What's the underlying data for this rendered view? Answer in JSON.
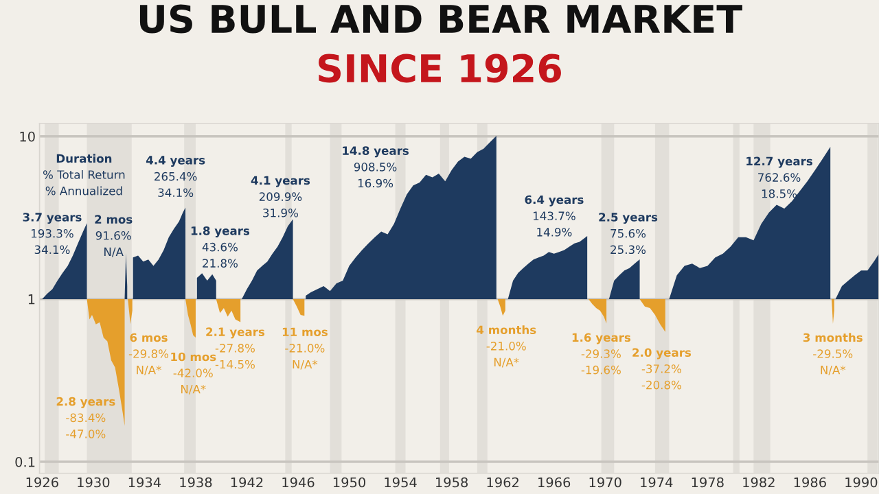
{
  "chart_data": {
    "type": "area",
    "title": "US BULL AND BEAR MARKET",
    "subtitle": "SINCE 1926",
    "log": "y",
    "ylim": [
      0.085,
      12
    ],
    "yticks": [
      0.1,
      1,
      10
    ],
    "xlim": [
      1925.8,
      1991.4
    ],
    "xticks": [
      1926,
      1930,
      1934,
      1938,
      1942,
      1946,
      1950,
      1954,
      1958,
      1962,
      1966,
      1970,
      1974,
      1978,
      1982,
      1986,
      1990
    ],
    "grid": "y",
    "series": [
      {
        "color": "#1e3a5f",
        "x": [
          1926.0,
          1926.4,
          1926.8,
          1927.2,
          1927.6,
          1928.0,
          1928.4,
          1928.8,
          1929.2,
          1929.5
        ],
        "values": [
          1.0,
          1.08,
          1.15,
          1.3,
          1.45,
          1.6,
          1.85,
          2.2,
          2.6,
          2.93
        ]
      },
      {
        "color": "#e59f2c",
        "x": [
          1929.5,
          1929.7,
          1929.9,
          1930.2,
          1930.5,
          1930.8,
          1931.1,
          1931.4,
          1931.7,
          1932.0,
          1932.3,
          1932.45,
          1932.45
        ],
        "values": [
          1.0,
          0.75,
          0.8,
          0.7,
          0.72,
          0.58,
          0.55,
          0.42,
          0.38,
          0.28,
          0.2,
          0.166,
          1.0
        ]
      },
      {
        "color": "#1e3a5f",
        "x": [
          1932.45,
          1932.55,
          1932.65
        ],
        "values": [
          1.0,
          1.916,
          1.2
        ]
      },
      {
        "color": "#e59f2c",
        "x": [
          1932.7,
          1932.9,
          1933.05,
          1933.05
        ],
        "values": [
          1.0,
          0.702,
          0.85,
          1.0
        ]
      },
      {
        "color": "#1e3a5f",
        "x": [
          1933.1,
          1933.5,
          1933.9,
          1934.3,
          1934.7,
          1935.1,
          1935.5,
          1935.9,
          1936.3,
          1936.7,
          1937.0,
          1937.2
        ],
        "values": [
          1.8,
          1.85,
          1.7,
          1.75,
          1.6,
          1.75,
          2.0,
          2.4,
          2.7,
          3.0,
          3.4,
          3.65
        ]
      },
      {
        "color": "#e59f2c",
        "x": [
          1937.2,
          1937.4,
          1937.6,
          1937.8,
          1938.0,
          1938.0
        ],
        "values": [
          1.0,
          0.8,
          0.7,
          0.6,
          0.58,
          1.0
        ]
      },
      {
        "color": "#1e3a5f",
        "x": [
          1938.1,
          1938.5,
          1938.9,
          1939.3,
          1939.6
        ],
        "values": [
          1.35,
          1.44,
          1.3,
          1.42,
          1.3
        ]
      },
      {
        "color": "#e59f2c",
        "x": [
          1939.6,
          1939.9,
          1940.2,
          1940.5,
          1940.8,
          1941.1,
          1941.5,
          1941.5
        ],
        "values": [
          1.0,
          0.82,
          0.88,
          0.78,
          0.85,
          0.75,
          0.722,
          1.0
        ]
      },
      {
        "color": "#1e3a5f",
        "x": [
          1941.6,
          1942.0,
          1942.4,
          1942.8,
          1943.2,
          1943.6,
          1944.0,
          1944.4,
          1944.8,
          1945.2,
          1945.6
        ],
        "values": [
          1.0,
          1.15,
          1.3,
          1.5,
          1.6,
          1.7,
          1.9,
          2.1,
          2.4,
          2.8,
          3.1
        ]
      },
      {
        "color": "#e59f2c",
        "x": [
          1945.6,
          1945.9,
          1946.2,
          1946.5,
          1946.5
        ],
        "values": [
          1.0,
          0.9,
          0.8,
          0.79,
          1.0
        ]
      },
      {
        "color": "#1e3a5f",
        "x": [
          1946.6,
          1947.0,
          1947.5,
          1948.0,
          1948.5,
          1949.0,
          1949.5,
          1950.0,
          1950.5,
          1951.0,
          1951.5,
          1952.0,
          1952.5,
          1953.0,
          1953.5,
          1954.0,
          1954.5,
          1955.0,
          1955.5,
          1956.0,
          1956.5,
          1957.0,
          1957.5,
          1958.0,
          1958.5,
          1959.0,
          1959.5,
          1960.0,
          1960.5,
          1961.0,
          1961.5
        ],
        "values": [
          1.05,
          1.1,
          1.15,
          1.2,
          1.12,
          1.25,
          1.3,
          1.6,
          1.8,
          2.0,
          2.2,
          2.4,
          2.6,
          2.5,
          2.9,
          3.6,
          4.4,
          5.0,
          5.2,
          5.8,
          5.6,
          5.9,
          5.3,
          6.2,
          7.0,
          7.5,
          7.3,
          8.0,
          8.4,
          9.2,
          10.08
        ]
      },
      {
        "color": "#e59f2c",
        "x": [
          1961.6,
          1961.8,
          1962.0,
          1962.2,
          1962.2
        ],
        "values": [
          1.0,
          0.9,
          0.79,
          0.85,
          1.0
        ]
      },
      {
        "color": "#1e3a5f",
        "x": [
          1962.4,
          1962.8,
          1963.2,
          1963.6,
          1964.0,
          1964.4,
          1964.8,
          1965.2,
          1965.6,
          1966.0,
          1966.4,
          1966.8,
          1967.2,
          1967.6,
          1968.0,
          1968.6
        ],
        "values": [
          1.0,
          1.3,
          1.45,
          1.55,
          1.65,
          1.75,
          1.8,
          1.85,
          1.95,
          1.9,
          1.95,
          2.0,
          2.1,
          2.2,
          2.25,
          2.44
        ]
      },
      {
        "color": "#e59f2c",
        "x": [
          1968.7,
          1969.0,
          1969.3,
          1969.6,
          1969.9,
          1970.1,
          1970.1
        ],
        "values": [
          1.0,
          0.93,
          0.88,
          0.85,
          0.78,
          0.707,
          1.0
        ]
      },
      {
        "color": "#1e3a5f",
        "x": [
          1970.3,
          1970.7,
          1971.1,
          1971.5,
          1971.9,
          1972.3,
          1972.7
        ],
        "values": [
          1.0,
          1.3,
          1.4,
          1.5,
          1.55,
          1.65,
          1.756
        ]
      },
      {
        "color": "#e59f2c",
        "x": [
          1972.7,
          1973.1,
          1973.5,
          1973.9,
          1974.3,
          1974.7,
          1974.7
        ],
        "values": [
          1.0,
          0.9,
          0.88,
          0.8,
          0.7,
          0.628,
          1.0
        ]
      },
      {
        "color": "#1e3a5f",
        "x": [
          1975.0,
          1975.6,
          1976.2,
          1976.8,
          1977.4,
          1978.0,
          1978.6,
          1979.2,
          1979.8,
          1980.4,
          1981.0,
          1981.6,
          1982.2,
          1982.8,
          1983.4,
          1984.0,
          1984.6,
          1985.2,
          1985.8,
          1986.4,
          1987.0,
          1987.6
        ],
        "values": [
          1.0,
          1.4,
          1.6,
          1.65,
          1.55,
          1.6,
          1.8,
          1.9,
          2.1,
          2.4,
          2.4,
          2.3,
          2.9,
          3.4,
          3.8,
          3.6,
          4.0,
          4.6,
          5.3,
          6.2,
          7.3,
          8.63
        ]
      },
      {
        "color": "#e59f2c",
        "x": [
          1987.7,
          1987.8,
          1987.9,
          1987.9
        ],
        "values": [
          1.0,
          0.705,
          0.85,
          1.0
        ]
      },
      {
        "color": "#1e3a5f",
        "x": [
          1988.0,
          1988.5,
          1989.0,
          1989.5,
          1990.0,
          1990.5,
          1991.0,
          1991.4
        ],
        "values": [
          1.0,
          1.2,
          1.3,
          1.4,
          1.5,
          1.5,
          1.7,
          1.9
        ]
      }
    ],
    "bands": [
      {
        "axis": "x",
        "from": 1926.2,
        "to": 1927.3,
        "color": "#e2dfd9"
      },
      {
        "axis": "x",
        "from": 1929.5,
        "to": 1933.0,
        "color": "#e2dfd9"
      },
      {
        "axis": "x",
        "from": 1937.1,
        "to": 1938.0,
        "color": "#e2dfd9"
      },
      {
        "axis": "x",
        "from": 1945.0,
        "to": 1945.5,
        "color": "#e2dfd9"
      },
      {
        "axis": "x",
        "from": 1948.5,
        "to": 1949.4,
        "color": "#e2dfd9"
      },
      {
        "axis": "x",
        "from": 1953.6,
        "to": 1954.4,
        "color": "#e2dfd9"
      },
      {
        "axis": "x",
        "from": 1957.1,
        "to": 1957.8,
        "color": "#e2dfd9"
      },
      {
        "axis": "x",
        "from": 1960.0,
        "to": 1960.8,
        "color": "#e2dfd9"
      },
      {
        "axis": "x",
        "from": 1969.7,
        "to": 1970.7,
        "color": "#e2dfd9"
      },
      {
        "axis": "x",
        "from": 1973.9,
        "to": 1975.0,
        "color": "#e2dfd9"
      },
      {
        "axis": "x",
        "from": 1980.0,
        "to": 1980.5,
        "color": "#e2dfd9"
      },
      {
        "axis": "x",
        "from": 1981.6,
        "to": 1982.9,
        "color": "#e2dfd9"
      },
      {
        "axis": "x",
        "from": 1990.5,
        "to": 1991.3,
        "color": "#e2dfd9"
      }
    ],
    "annotations": [
      "Duration\n% Total Return\n% Annualized",
      "3.7 years\n193.3%\n34.1%",
      "2 mos\n91.6%\nN/A",
      "4.4 years\n265.4%\n34.1%",
      "1.8 years\n43.6%\n21.8%",
      "4.1 years\n209.9%\n31.9%",
      "14.8 years\n908.5%\n16.9%",
      "6.4 years\n143.7%\n14.9%",
      "2.5 years\n75.6%\n25.3%",
      "12.7 years\n762.6%\n18.5%",
      "2.8 years\n-83.4%\n-47.0%",
      "6 mos\n-29.8%\nN/A*",
      "10 mos\n-42.0%\nN/A*",
      "2.1 years\n-27.8%\n-14.5%",
      "11 mos\n-21.0%\nN/A*",
      "4 months\n-21.0%\nN/A*",
      "1.6 years\n-29.3%\n-19.6%",
      "2.0 years\n-37.2%\n-20.8%",
      "3 months\n-29.5%\nN/A*"
    ]
  }
}
